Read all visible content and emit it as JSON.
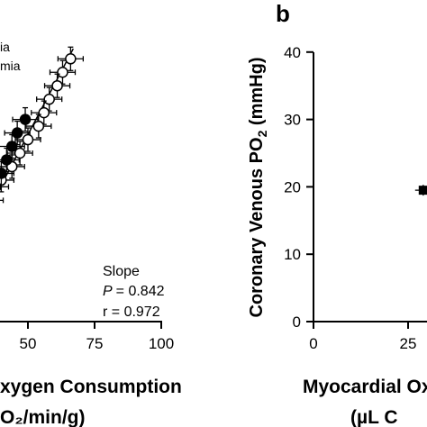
{
  "chart_data": [
    {
      "type": "scatter",
      "panel_label": "",
      "legend": [
        "ia",
        "mia"
      ],
      "x_ticks": [
        "50",
        "75",
        "100"
      ],
      "xlabel_line1": "xygen Consumption",
      "xlabel_line2": "O₂/min/g)",
      "xlim": [
        30,
        100
      ],
      "annotation": {
        "title": "Slope",
        "p_label": "P",
        "p_value": "= 0.842",
        "r_value": "r = 0.972"
      },
      "series": [
        {
          "marker": "open-circle",
          "points": [
            [
              66,
              39
            ],
            [
              63,
              37
            ],
            [
              61,
              35
            ],
            [
              58,
              33
            ],
            [
              56,
              31
            ],
            [
              54,
              29
            ],
            [
              50,
              27
            ],
            [
              47,
              25
            ],
            [
              44,
              23
            ],
            [
              40,
              21
            ]
          ]
        },
        {
          "marker": "filled-circle",
          "points": [
            [
              49,
              30
            ],
            [
              46,
              28
            ],
            [
              44,
              26
            ],
            [
              42,
              24
            ],
            [
              40,
              22
            ],
            [
              38,
              20
            ],
            [
              36,
              18
            ],
            [
              33,
              16
            ]
          ]
        }
      ],
      "fit_line": [
        [
          31,
          13.5
        ],
        [
          67,
          40.5
        ]
      ]
    },
    {
      "type": "scatter",
      "panel_label": "b",
      "ylabel": "Coronary Venous PO2 (mmHg)",
      "y_ticks": [
        "0",
        "10",
        "20",
        "30",
        "40"
      ],
      "ylim": [
        0,
        40
      ],
      "x_ticks": [
        "0",
        "25"
      ],
      "xlabel_line1": "Myocardial Oxy",
      "xlabel_line2": "(µL C",
      "series": [
        {
          "marker": "filled-circle",
          "points": [
            [
              29,
              19.5
            ]
          ]
        }
      ]
    }
  ]
}
